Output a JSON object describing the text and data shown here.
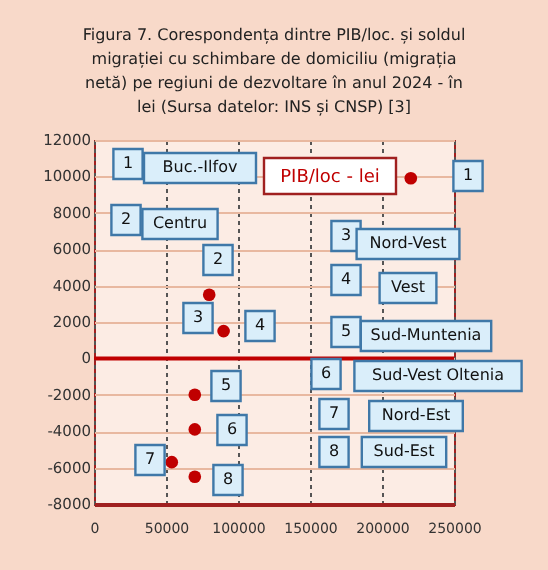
{
  "chart_data": {
    "type": "scatter",
    "title": "Figura 7. Corespondența dintre PIB/loc. și soldul migrației cu schimbare de domiciliu (migrația netă) pe regiuni de dezvoltare în anul 2024 - în lei (Sursa datelor: INS și CNSP) [3]",
    "xlabel": "PIB/loc - lei",
    "x": [
      220000,
      80000,
      null,
      90000,
      70000,
      70000,
      54000,
      70000
    ],
    "series": [
      {
        "color": "#c00000",
        "values": [
          9900,
          3500,
          null,
          1500,
          -2000,
          -3900,
          -5700,
          -6500
        ]
      }
    ],
    "xlim": [
      0,
      250000
    ],
    "xticks": [
      0,
      50000,
      100000,
      150000,
      200000,
      250000
    ],
    "ylim": [
      -8000,
      12000
    ],
    "yticks": [
      -8000,
      -6000,
      -4000,
      -2000,
      0,
      2000,
      4000,
      6000,
      8000,
      10000,
      12000
    ],
    "grid": true,
    "marker": "circle",
    "ref_lines": [
      {
        "axis": "y",
        "value": 0,
        "color": "#c00000"
      }
    ],
    "annotations": [
      "1",
      "Buc.-Ilfov",
      "2",
      "Centru",
      "2",
      "3",
      "4",
      "1",
      "3",
      "Nord-Vest",
      "4",
      "Vest",
      "5",
      "Sud-Muntenia",
      "6",
      "Sud-Vest Oltenia",
      "7",
      "Nord-Est",
      "8",
      "Sud-Est",
      "5",
      "6",
      "7",
      "8"
    ]
  }
}
